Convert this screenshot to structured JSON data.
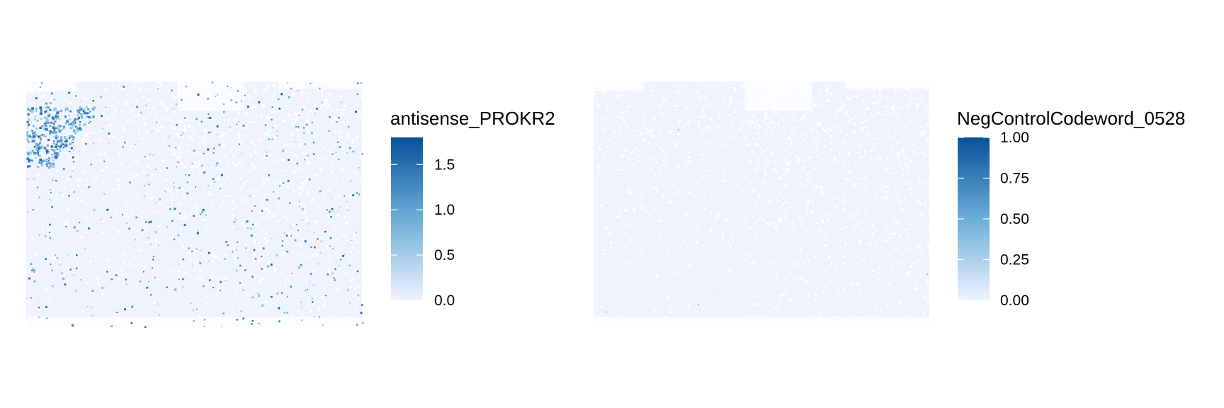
{
  "chart_data": [
    {
      "type": "heatmap",
      "title": "",
      "xlabel": "",
      "ylabel": "",
      "grid": false,
      "legend": {
        "title": "antisense_PROKR2",
        "placement": "right",
        "range": [
          0,
          1.8
        ],
        "ticks": [
          0.0,
          0.5,
          1.0,
          1.5
        ],
        "tick_labels": [
          "0.0",
          "0.5",
          "1.0",
          "1.5"
        ]
      },
      "color_scale": {
        "low": "#eff3ff",
        "mid": "#6baed6",
        "high": "#08519c"
      },
      "background_value": 0.0,
      "pattern": "sparse bright spots, dense cluster in upper-left corner"
    },
    {
      "type": "heatmap",
      "title": "",
      "xlabel": "",
      "ylabel": "",
      "grid": false,
      "legend": {
        "title": "NegControlCodeword_0528",
        "placement": "right",
        "range": [
          0,
          1
        ],
        "ticks": [
          0.0,
          0.25,
          0.5,
          0.75,
          1.0
        ],
        "tick_labels": [
          "0.00",
          "0.25",
          "0.50",
          "0.75",
          "1.00"
        ]
      },
      "color_scale": {
        "low": "#eff3ff",
        "mid": "#6baed6",
        "high": "#08519c"
      },
      "background_value": 0.0,
      "pattern": "almost uniformly zero"
    }
  ]
}
